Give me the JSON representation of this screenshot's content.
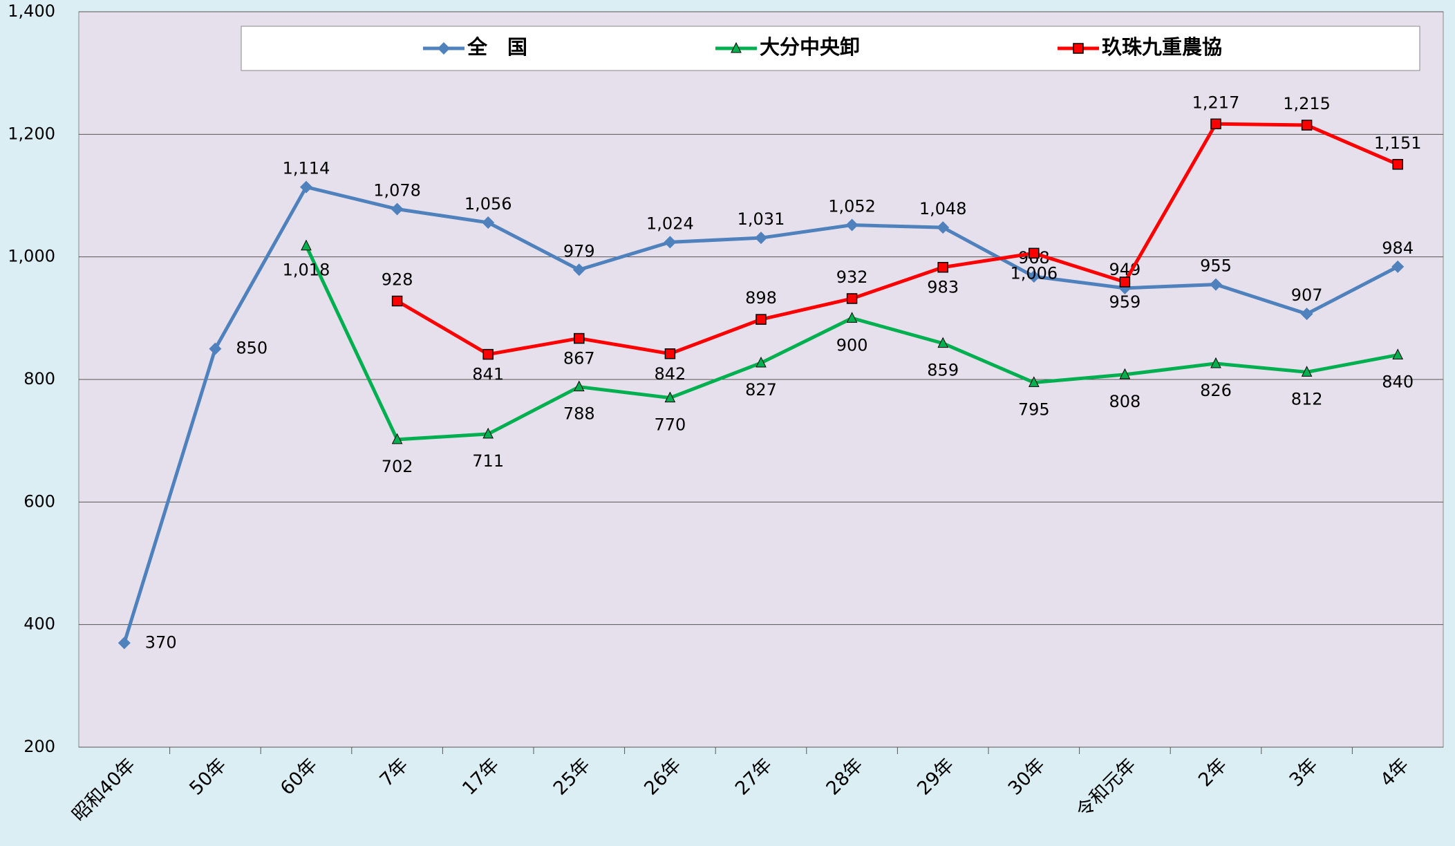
{
  "chart_data": {
    "type": "line",
    "categories": [
      "昭和40年",
      "50年",
      "60年",
      "7年",
      "17年",
      "25年",
      "26年",
      "27年",
      "28年",
      "29年",
      "30年",
      "令和元年",
      "2年",
      "3年",
      "4年"
    ],
    "series": [
      {
        "name": "全　国",
        "color": "#4f81bd",
        "marker": "diamond",
        "values": [
          370,
          850,
          1114,
          1078,
          1056,
          979,
          1024,
          1031,
          1052,
          1048,
          968,
          949,
          955,
          907,
          984
        ],
        "value_labels": [
          "370",
          "850",
          "1,114",
          "1,078",
          "1,056",
          "979",
          "1,024",
          "1,031",
          "1,052",
          "1,048",
          "968",
          "949",
          "955",
          "907",
          "984"
        ]
      },
      {
        "name": "大分中央卸",
        "color": "#00b050",
        "marker": "triangle",
        "values": [
          null,
          null,
          1018,
          702,
          711,
          788,
          770,
          827,
          900,
          859,
          795,
          808,
          826,
          812,
          840
        ],
        "value_labels": [
          null,
          null,
          "1,018",
          "702",
          "711",
          "788",
          "770",
          "827",
          "900",
          "859",
          "795",
          "808",
          "826",
          "812",
          "840"
        ]
      },
      {
        "name": "玖珠九重農協",
        "color": "#ff0000",
        "marker": "square",
        "values": [
          null,
          null,
          null,
          928,
          841,
          867,
          842,
          898,
          932,
          983,
          1006,
          959,
          1217,
          1215,
          1151
        ],
        "value_labels": [
          null,
          null,
          null,
          "928",
          "841",
          "867",
          "842",
          "898",
          "932",
          "983",
          "1,006",
          "959",
          "1,217",
          "1,215",
          "1,151"
        ]
      }
    ],
    "ylim": [
      200,
      1400
    ],
    "yticks": [
      200,
      400,
      600,
      800,
      {
        "value": 1000,
        "label": "1,000"
      },
      {
        "value": 1200,
        "label": "1,200"
      },
      {
        "value": 1400,
        "label": "1,400"
      }
    ],
    "grid": true,
    "legend": "top"
  }
}
